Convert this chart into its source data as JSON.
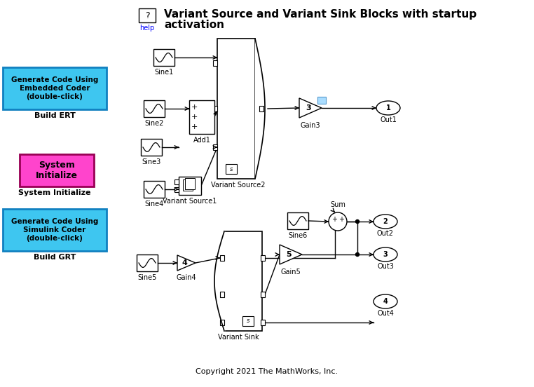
{
  "bg_color": "#ffffff",
  "copyright": "Copyright 2021 The MathWorks, Inc.",
  "title_line1": "Variant Source and Variant Sink Blocks with startup",
  "title_line2": "activation",
  "cyan_color": "#3ec6f0",
  "cyan_border": "#1080c0",
  "magenta_color": "#ff44cc",
  "magenta_border": "#990055"
}
